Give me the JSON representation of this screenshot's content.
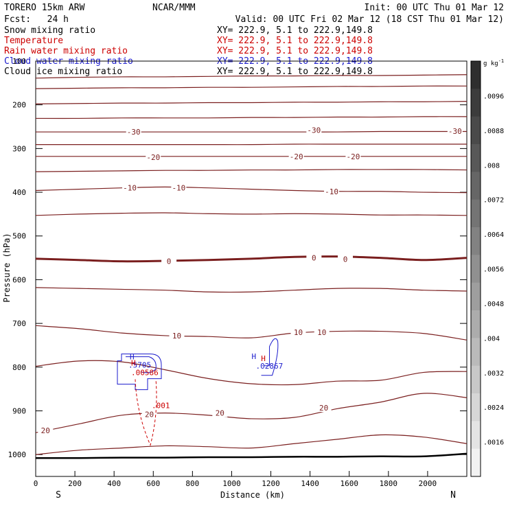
{
  "header": {
    "model": "TORERO  15km ARW",
    "center": "NCAR/MMM",
    "init": "Init: 00 UTC Thu 01 Mar 12",
    "fcst": "Fcst:   24 h",
    "valid": "Valid: 00 UTC Fri 02 Mar 12 (18 CST Thu 01 Mar 12)"
  },
  "fields": [
    {
      "name": "Snow mixing ratio",
      "coords": "XY= 222.9,  5.1 to 222.9,149.8",
      "color": "#000000"
    },
    {
      "name": "Temperature",
      "coords": "XY= 222.9,  5.1 to 222.9,149.8",
      "color": "#cc0000"
    },
    {
      "name": "Rain water mixing ratio",
      "coords": "XY= 222.9,  5.1 to 222.9,149.8",
      "color": "#cc0000"
    },
    {
      "name": "Cloud water mixing ratio",
      "coords": "XY= 222.9,  5.1 to 222.9,149.8",
      "color": "#1a1acc"
    },
    {
      "name": "Cloud ice mixing ratio",
      "coords": "XY= 222.9,  5.1 to 222.9,149.8",
      "color": "#000000"
    }
  ],
  "chart_data": {
    "type": "cross-section contour",
    "xlabel": "Distance (km)",
    "ylabel": "Pressure (hPa)",
    "xlim": [
      0,
      2200
    ],
    "ylim": [
      1050,
      100
    ],
    "x_ticks": [
      0,
      200,
      400,
      600,
      800,
      1000,
      1200,
      1400,
      1600,
      1800,
      2000
    ],
    "y_ticks": [
      100,
      200,
      300,
      400,
      500,
      600,
      700,
      800,
      900,
      1000
    ],
    "x_end_labels": {
      "left": "S",
      "right": "N"
    },
    "temperature": {
      "color": "#7a1e1e",
      "interval": 5,
      "levels": [
        {
          "t": -50,
          "p": [
            139,
            137,
            136,
            136,
            135,
            134,
            134,
            133,
            133,
            132,
            131
          ]
        },
        {
          "t": -45,
          "p": [
            163,
            162,
            161,
            161,
            160,
            160,
            159,
            158,
            158,
            157,
            157
          ]
        },
        {
          "t": -40,
          "p": [
            198,
            197,
            196,
            196,
            195,
            195,
            194,
            194,
            193,
            193,
            192
          ]
        },
        {
          "t": -35,
          "p": [
            231,
            231,
            230,
            230,
            230,
            229,
            229,
            228,
            228,
            227,
            227
          ]
        },
        {
          "t": -30,
          "p": [
            262,
            262,
            262,
            262,
            262,
            262,
            262,
            262,
            261,
            261,
            261
          ]
        },
        {
          "t": -25,
          "p": [
            291,
            291,
            291,
            291,
            291,
            291,
            290,
            290,
            290,
            290,
            290
          ]
        },
        {
          "t": -20,
          "p": [
            318,
            318,
            318,
            318,
            318,
            318,
            318,
            318,
            318,
            318,
            318
          ]
        },
        {
          "t": -15,
          "p": [
            353,
            352,
            351,
            350,
            350,
            349,
            349,
            348,
            348,
            348,
            349
          ]
        },
        {
          "t": -10,
          "p": [
            396,
            393,
            390,
            388,
            390,
            393,
            396,
            398,
            398,
            400,
            401
          ]
        },
        {
          "t": -5,
          "p": [
            453,
            450,
            448,
            447,
            449,
            450,
            449,
            450,
            452,
            452,
            453
          ]
        },
        {
          "t": 0,
          "p": [
            552,
            555,
            558,
            557,
            555,
            552,
            548,
            547,
            550,
            555,
            550
          ]
        },
        {
          "t": 5,
          "p": [
            618,
            620,
            622,
            624,
            628,
            628,
            624,
            620,
            620,
            624,
            626
          ]
        },
        {
          "t": 10,
          "p": [
            705,
            712,
            722,
            728,
            730,
            733,
            722,
            718,
            718,
            723,
            738
          ]
        },
        {
          "t": 15,
          "p": [
            798,
            786,
            788,
            806,
            826,
            838,
            840,
            832,
            830,
            812,
            810
          ]
        },
        {
          "t": 20,
          "p": [
            950,
            930,
            910,
            905,
            910,
            918,
            915,
            895,
            880,
            860,
            870
          ]
        },
        {
          "t": 25,
          "p": [
            1000,
            990,
            985,
            980,
            982,
            985,
            975,
            965,
            955,
            960,
            975
          ]
        }
      ],
      "labels": [
        {
          "value": "-30",
          "x": 500,
          "p": 262
        },
        {
          "value": "-30",
          "x": 1420,
          "p": 258
        },
        {
          "value": "-30",
          "x": 2140,
          "p": 260
        },
        {
          "value": "-20",
          "x": 600,
          "p": 320
        },
        {
          "value": "-20",
          "x": 1330,
          "p": 318
        },
        {
          "value": "-20",
          "x": 1620,
          "p": 318
        },
        {
          "value": "-10",
          "x": 480,
          "p": 390
        },
        {
          "value": "-10",
          "x": 730,
          "p": 390
        },
        {
          "value": "-10",
          "x": 1510,
          "p": 398
        },
        {
          "value": "0",
          "x": 680,
          "p": 558
        },
        {
          "value": "0",
          "x": 1420,
          "p": 550
        },
        {
          "value": "0",
          "x": 1580,
          "p": 553
        },
        {
          "value": "10",
          "x": 720,
          "p": 728
        },
        {
          "value": "10",
          "x": 1340,
          "p": 720
        },
        {
          "value": "10",
          "x": 1460,
          "p": 720
        },
        {
          "value": "20",
          "x": 580,
          "p": 908
        },
        {
          "value": "20",
          "x": 940,
          "p": 905
        },
        {
          "value": "20",
          "x": 1470,
          "p": 893
        },
        {
          "value": "20",
          "x": 50,
          "p": 945
        }
      ]
    },
    "rain_water": {
      "color": "#cc0000",
      "max_label": ".00586",
      "contour_label": ".001",
      "center": {
        "x": 550,
        "p": 812
      }
    },
    "cloud_water": {
      "color": "#1a1acc",
      "max_labels": [
        ".5705",
        ".02867"
      ],
      "centers": [
        {
          "x": 550,
          "p": 795
        },
        {
          "x": 1200,
          "p": 800
        }
      ]
    },
    "ground_pressure": [
      1008,
      1008,
      1007,
      1007,
      1006,
      1006,
      1005,
      1005,
      1004,
      1004,
      998
    ],
    "snow_colorbar": {
      "units": "g kg",
      "units_exponent": "-1",
      "tick_labels": [
        ".0096",
        ".0088",
        ".008",
        ".0072",
        ".0064",
        ".0056",
        ".0048",
        ".004",
        ".0032",
        ".0024",
        ".0016"
      ],
      "colors": [
        "#2e2e2e",
        "#3c3c3c",
        "#4a4a4a",
        "#585858",
        "#666666",
        "#747474",
        "#828282",
        "#909090",
        "#9e9e9e",
        "#acacac",
        "#bababa",
        "#c8c8c8",
        "#d6d6d6",
        "#e4e4e4",
        "#f2f2f2"
      ]
    }
  }
}
